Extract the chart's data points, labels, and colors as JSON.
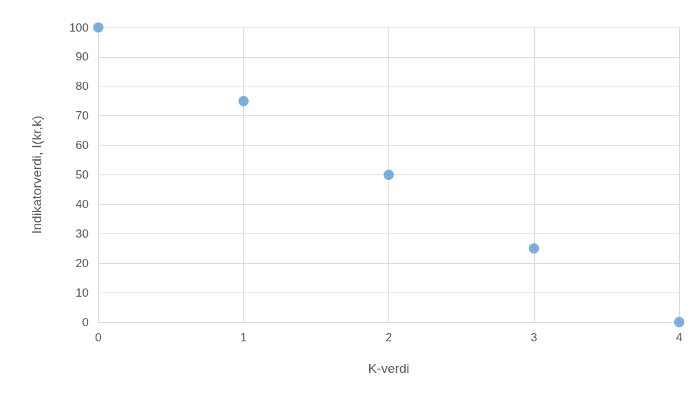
{
  "chart_data": {
    "type": "scatter",
    "xlabel": "K-verdi",
    "ylabel": "Indikatorverdi, I(kr,k)",
    "x": [
      0,
      1,
      2,
      3,
      4
    ],
    "series": [
      {
        "color": "#5b9bd5",
        "values": [
          100,
          75,
          50,
          25,
          0
        ]
      }
    ],
    "xlim": [
      0,
      4
    ],
    "xticks": [
      0,
      1,
      2,
      3,
      4
    ],
    "ylim": [
      0,
      100
    ],
    "yticks": [
      0,
      10,
      20,
      30,
      40,
      50,
      60,
      70,
      80,
      90,
      100
    ],
    "grid": true,
    "marker": "circle"
  }
}
